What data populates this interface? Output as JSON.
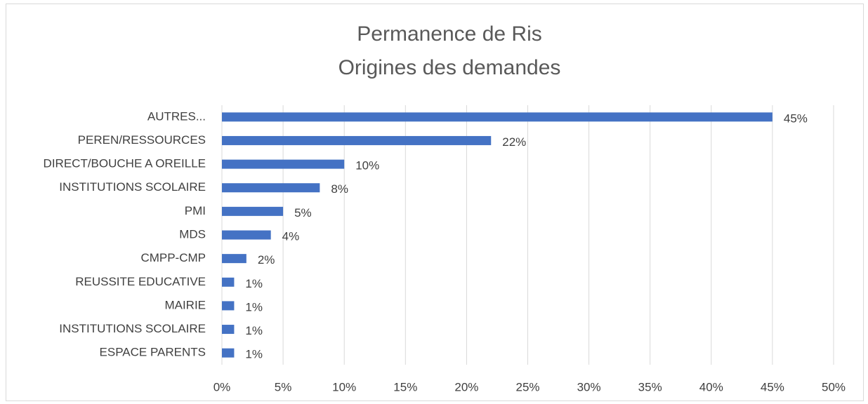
{
  "chart_data": {
    "type": "barh",
    "title": [
      "Permanence de Ris",
      "Origines des demandes"
    ],
    "categories": [
      "AUTRES...",
      "PEREN/RESSOURCES",
      "DIRECT/BOUCHE A OREILLE",
      "INSTITUTIONS SCOLAIRE",
      "PMI",
      "MDS",
      "CMPP-CMP",
      "REUSSITE EDUCATIVE",
      "MAIRIE",
      "INSTITUTIONS SCOLAIRE",
      "ESPACE PARENTS"
    ],
    "values": [
      45,
      22,
      10,
      8,
      5,
      4,
      2,
      1,
      1,
      1,
      1
    ],
    "value_labels": [
      "45%",
      "22%",
      "10%",
      "8%",
      "5%",
      "4%",
      "2%",
      "1%",
      "1%",
      "1%",
      "1%"
    ],
    "color": "#4472c4",
    "xlim": [
      0,
      50
    ],
    "xticks": [
      {
        "value": 0,
        "label": "0%"
      },
      {
        "value": 5,
        "label": "5%"
      },
      {
        "value": 10,
        "label": "10%"
      },
      {
        "value": 15,
        "label": "15%"
      },
      {
        "value": 20,
        "label": "20%"
      },
      {
        "value": 25,
        "label": "25%"
      },
      {
        "value": 30,
        "label": "30%"
      },
      {
        "value": 35,
        "label": "35%"
      },
      {
        "value": 40,
        "label": "40%"
      },
      {
        "value": 45,
        "label": "45%"
      },
      {
        "value": 50,
        "label": "50%"
      }
    ],
    "grid": true
  }
}
